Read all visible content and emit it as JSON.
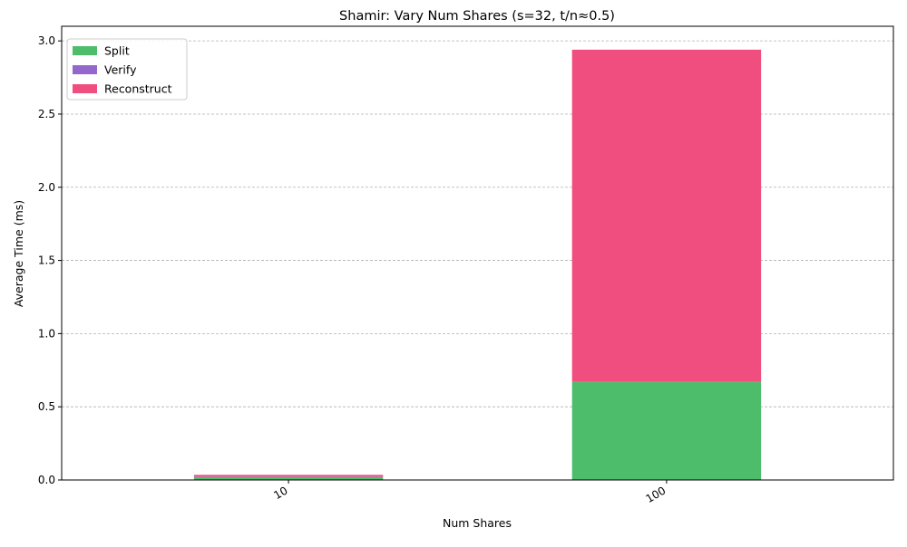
{
  "chart_data": {
    "type": "bar",
    "stacked": true,
    "title": "Shamir: Vary Num Shares (s=32, t/n≈0.5)",
    "xlabel": "Num Shares",
    "ylabel": "Average Time (ms)",
    "categories": [
      "10",
      "100"
    ],
    "ylim": [
      0,
      3.1
    ],
    "yticks": [
      "0.0",
      "0.5",
      "1.0",
      "1.5",
      "2.0",
      "2.5",
      "3.0"
    ],
    "grid": "y-dashed",
    "legend_position": "top-left",
    "series": [
      {
        "name": "Split",
        "color": "#4dbd6b",
        "values": [
          0.02,
          0.67
        ]
      },
      {
        "name": "Verify",
        "color": "#9467cc",
        "values": [
          0.002,
          0.0
        ]
      },
      {
        "name": "Reconstruct",
        "color": "#f04e7f",
        "values": [
          0.013,
          2.27
        ]
      }
    ]
  }
}
